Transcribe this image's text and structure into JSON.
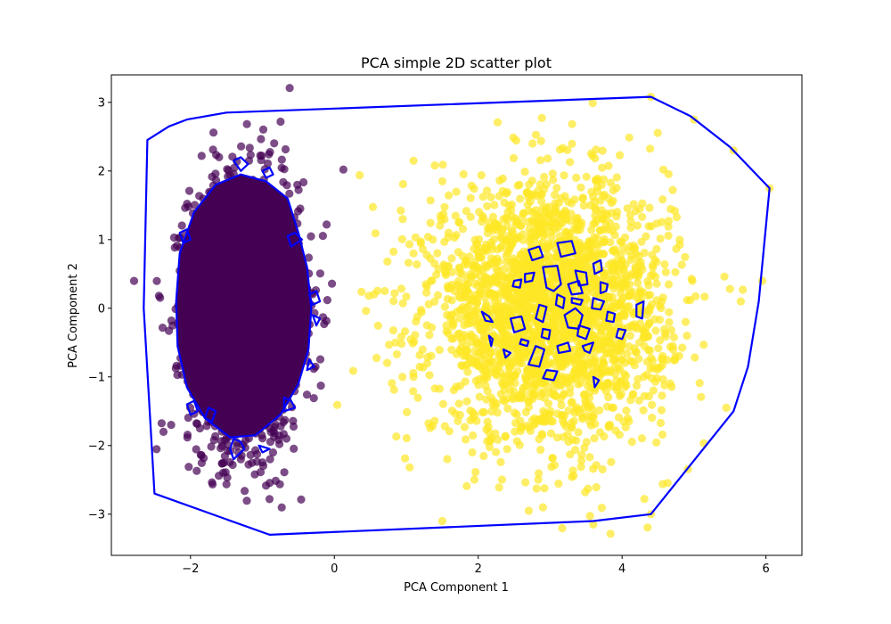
{
  "chart_data": {
    "type": "scatter",
    "title": "PCA simple 2D scatter plot",
    "xlabel": "PCA Component 1",
    "ylabel": "PCA Component 2",
    "xlim": [
      -3.1,
      6.5
    ],
    "ylim": [
      -3.6,
      3.4
    ],
    "xticks": [
      -2,
      0,
      2,
      4,
      6
    ],
    "yticks": [
      -3,
      -2,
      -1,
      0,
      1,
      2,
      3
    ],
    "grid": false,
    "series": [
      {
        "color": "#440154",
        "cluster": {
          "center": [
            -1.25,
            -0.05
          ],
          "std": [
            0.38,
            0.95
          ],
          "count": 2500
        },
        "core_fill": "#440154",
        "core": [
          [
            -1.3,
            1.95
          ],
          [
            -0.95,
            1.85
          ],
          [
            -0.65,
            1.6
          ],
          [
            -0.5,
            1.1
          ],
          [
            -0.38,
            0.6
          ],
          [
            -0.32,
            0.0
          ],
          [
            -0.36,
            -0.6
          ],
          [
            -0.5,
            -1.1
          ],
          [
            -0.75,
            -1.55
          ],
          [
            -1.1,
            -1.85
          ],
          [
            -1.45,
            -1.88
          ],
          [
            -1.8,
            -1.6
          ],
          [
            -2.05,
            -1.15
          ],
          [
            -2.18,
            -0.55
          ],
          [
            -2.2,
            0.1
          ],
          [
            -2.15,
            0.8
          ],
          [
            -1.95,
            1.4
          ],
          [
            -1.65,
            1.8
          ]
        ]
      },
      {
        "color": "#fde725",
        "cluster": {
          "center": [
            3.0,
            -0.05
          ],
          "std": [
            0.82,
            0.92
          ],
          "count": 2500
        },
        "sample_points": [
          [
            1.5,
            -3.1
          ],
          [
            1.1,
            2.15
          ],
          [
            1.1,
            -1.0
          ],
          [
            1.1,
            0.8
          ],
          [
            4.4,
            3.08
          ],
          [
            4.4,
            -3.0
          ],
          [
            6.05,
            1.75
          ],
          [
            5.55,
            2.3
          ],
          [
            5.65,
            0.1
          ],
          [
            5.95,
            0.4
          ],
          [
            5.45,
            -1.45
          ],
          [
            5.0,
            2.75
          ],
          [
            3.6,
            -3.15
          ],
          [
            2.9,
            -2.9
          ],
          [
            0.7,
            0.25
          ],
          [
            0.85,
            -0.5
          ],
          [
            0.95,
            1.3
          ],
          [
            0.55,
            0.2
          ]
        ]
      }
    ],
    "contours": {
      "color": "#0000ff",
      "outer_hull": [
        [
          -2.6,
          2.45
        ],
        [
          -2.3,
          2.65
        ],
        [
          -2.05,
          2.75
        ],
        [
          -1.5,
          2.85
        ],
        [
          4.4,
          3.08
        ],
        [
          4.95,
          2.8
        ],
        [
          5.5,
          2.35
        ],
        [
          6.05,
          1.75
        ],
        [
          5.9,
          0.1
        ],
        [
          5.75,
          -0.85
        ],
        [
          5.55,
          -1.5
        ],
        [
          4.4,
          -3.0
        ],
        [
          3.6,
          -3.1
        ],
        [
          -0.9,
          -3.3
        ],
        [
          -2.5,
          -2.7
        ],
        [
          -2.65,
          0.0
        ]
      ],
      "inner_loops": [
        [
          [
            -1.4,
            2.15
          ],
          [
            -1.3,
            2.2
          ],
          [
            -1.2,
            2.1
          ],
          [
            -1.3,
            2.0
          ]
        ],
        [
          [
            -1.0,
            2.0
          ],
          [
            -0.9,
            2.05
          ],
          [
            -0.85,
            1.95
          ],
          [
            -0.95,
            1.9
          ]
        ],
        [
          [
            -2.15,
            1.1
          ],
          [
            -2.05,
            1.15
          ],
          [
            -2.0,
            1.0
          ],
          [
            -2.1,
            0.95
          ]
        ],
        [
          [
            -0.65,
            1.05
          ],
          [
            -0.55,
            1.1
          ],
          [
            -0.45,
            1.0
          ],
          [
            -0.6,
            0.9
          ]
        ],
        [
          [
            -0.35,
            0.2
          ],
          [
            -0.25,
            0.25
          ],
          [
            -0.2,
            0.1
          ],
          [
            -0.3,
            0.05
          ]
        ],
        [
          [
            -0.3,
            -0.1
          ],
          [
            -0.2,
            -0.15
          ],
          [
            -0.25,
            -0.25
          ]
        ],
        [
          [
            -0.35,
            -0.75
          ],
          [
            -0.28,
            -0.85
          ],
          [
            -0.38,
            -0.9
          ]
        ],
        [
          [
            -0.7,
            -1.3
          ],
          [
            -0.6,
            -1.35
          ],
          [
            -0.55,
            -1.45
          ],
          [
            -0.7,
            -1.5
          ]
        ],
        [
          [
            -2.05,
            -1.4
          ],
          [
            -1.95,
            -1.35
          ],
          [
            -1.9,
            -1.5
          ],
          [
            -2.0,
            -1.55
          ]
        ],
        [
          [
            -1.75,
            -1.45
          ],
          [
            -1.65,
            -1.5
          ],
          [
            -1.7,
            -1.65
          ],
          [
            -1.8,
            -1.6
          ]
        ],
        [
          [
            -1.4,
            -1.9
          ],
          [
            -1.3,
            -1.95
          ],
          [
            -1.25,
            -2.05
          ],
          [
            -1.4,
            -2.2
          ],
          [
            -1.45,
            -2.05
          ]
        ],
        [
          [
            -1.05,
            -2.0
          ],
          [
            -0.9,
            -2.05
          ],
          [
            -1.0,
            -2.1
          ]
        ],
        [
          [
            2.7,
            0.85
          ],
          [
            2.85,
            0.9
          ],
          [
            2.9,
            0.75
          ],
          [
            2.75,
            0.7
          ]
        ],
        [
          [
            3.1,
            0.95
          ],
          [
            3.3,
            0.98
          ],
          [
            3.35,
            0.8
          ],
          [
            3.15,
            0.75
          ]
        ],
        [
          [
            3.6,
            0.65
          ],
          [
            3.7,
            0.7
          ],
          [
            3.72,
            0.55
          ],
          [
            3.62,
            0.5
          ]
        ],
        [
          [
            2.65,
            0.5
          ],
          [
            2.78,
            0.52
          ],
          [
            2.75,
            0.4
          ],
          [
            2.65,
            0.38
          ]
        ],
        [
          [
            2.9,
            0.6
          ],
          [
            3.1,
            0.62
          ],
          [
            3.15,
            0.35
          ],
          [
            3.05,
            0.25
          ],
          [
            2.95,
            0.3
          ]
        ],
        [
          [
            3.35,
            0.55
          ],
          [
            3.5,
            0.52
          ],
          [
            3.52,
            0.35
          ],
          [
            3.4,
            0.33
          ]
        ],
        [
          [
            3.7,
            0.38
          ],
          [
            3.8,
            0.35
          ],
          [
            3.78,
            0.25
          ],
          [
            3.7,
            0.22
          ]
        ],
        [
          [
            2.5,
            0.4
          ],
          [
            2.6,
            0.42
          ],
          [
            2.58,
            0.3
          ],
          [
            2.48,
            0.32
          ]
        ],
        [
          [
            3.4,
            0.4
          ],
          [
            3.25,
            0.35
          ],
          [
            3.3,
            0.2
          ],
          [
            3.45,
            0.22
          ]
        ],
        [
          [
            3.1,
            0.2
          ],
          [
            3.2,
            0.15
          ],
          [
            3.18,
            0.0
          ],
          [
            3.08,
            0.05
          ]
        ],
        [
          [
            3.3,
            0.15
          ],
          [
            3.45,
            0.12
          ],
          [
            3.42,
            0.05
          ],
          [
            3.3,
            0.08
          ]
        ],
        [
          [
            3.6,
            0.15
          ],
          [
            3.75,
            0.1
          ],
          [
            3.7,
            -0.02
          ],
          [
            3.58,
            0.0
          ]
        ],
        [
          [
            4.2,
            0.05
          ],
          [
            4.3,
            0.1
          ],
          [
            4.28,
            -0.15
          ],
          [
            4.2,
            -0.12
          ]
        ],
        [
          [
            2.85,
            0.05
          ],
          [
            2.95,
            0.02
          ],
          [
            2.9,
            -0.2
          ],
          [
            2.8,
            -0.15
          ]
        ],
        [
          [
            3.35,
            0.0
          ],
          [
            3.45,
            -0.1
          ],
          [
            3.4,
            -0.3
          ],
          [
            3.25,
            -0.28
          ],
          [
            3.2,
            -0.1
          ]
        ],
        [
          [
            2.05,
            -0.05
          ],
          [
            2.15,
            -0.12
          ],
          [
            2.2,
            -0.2
          ],
          [
            2.1,
            -0.18
          ]
        ],
        [
          [
            2.45,
            -0.15
          ],
          [
            2.6,
            -0.12
          ],
          [
            2.65,
            -0.3
          ],
          [
            2.5,
            -0.35
          ]
        ],
        [
          [
            3.8,
            -0.05
          ],
          [
            3.9,
            -0.08
          ],
          [
            3.88,
            -0.2
          ],
          [
            3.78,
            -0.18
          ]
        ],
        [
          [
            2.9,
            -0.3
          ],
          [
            3.0,
            -0.32
          ],
          [
            2.98,
            -0.45
          ],
          [
            2.88,
            -0.42
          ]
        ],
        [
          [
            3.4,
            -0.25
          ],
          [
            3.55,
            -0.3
          ],
          [
            3.5,
            -0.45
          ],
          [
            3.38,
            -0.4
          ]
        ],
        [
          [
            3.95,
            -0.3
          ],
          [
            4.05,
            -0.32
          ],
          [
            4.0,
            -0.45
          ],
          [
            3.92,
            -0.42
          ]
        ],
        [
          [
            2.6,
            -0.45
          ],
          [
            2.7,
            -0.48
          ],
          [
            2.68,
            -0.55
          ],
          [
            2.58,
            -0.52
          ]
        ],
        [
          [
            2.15,
            -0.4
          ],
          [
            2.2,
            -0.45
          ],
          [
            2.18,
            -0.55
          ]
        ],
        [
          [
            3.1,
            -0.55
          ],
          [
            3.25,
            -0.5
          ],
          [
            3.28,
            -0.62
          ],
          [
            3.12,
            -0.65
          ]
        ],
        [
          [
            3.45,
            -0.55
          ],
          [
            3.6,
            -0.5
          ],
          [
            3.55,
            -0.65
          ],
          [
            3.48,
            -0.62
          ]
        ],
        [
          [
            2.35,
            -0.6
          ],
          [
            2.45,
            -0.65
          ],
          [
            2.38,
            -0.72
          ]
        ],
        [
          [
            2.8,
            -0.55
          ],
          [
            2.92,
            -0.6
          ],
          [
            2.85,
            -0.85
          ],
          [
            2.7,
            -0.82
          ]
        ],
        [
          [
            2.95,
            -0.9
          ],
          [
            3.1,
            -0.92
          ],
          [
            3.05,
            -1.05
          ],
          [
            2.9,
            -1.02
          ]
        ],
        [
          [
            3.6,
            -1.0
          ],
          [
            3.68,
            -1.05
          ],
          [
            3.62,
            -1.15
          ]
        ]
      ]
    }
  }
}
